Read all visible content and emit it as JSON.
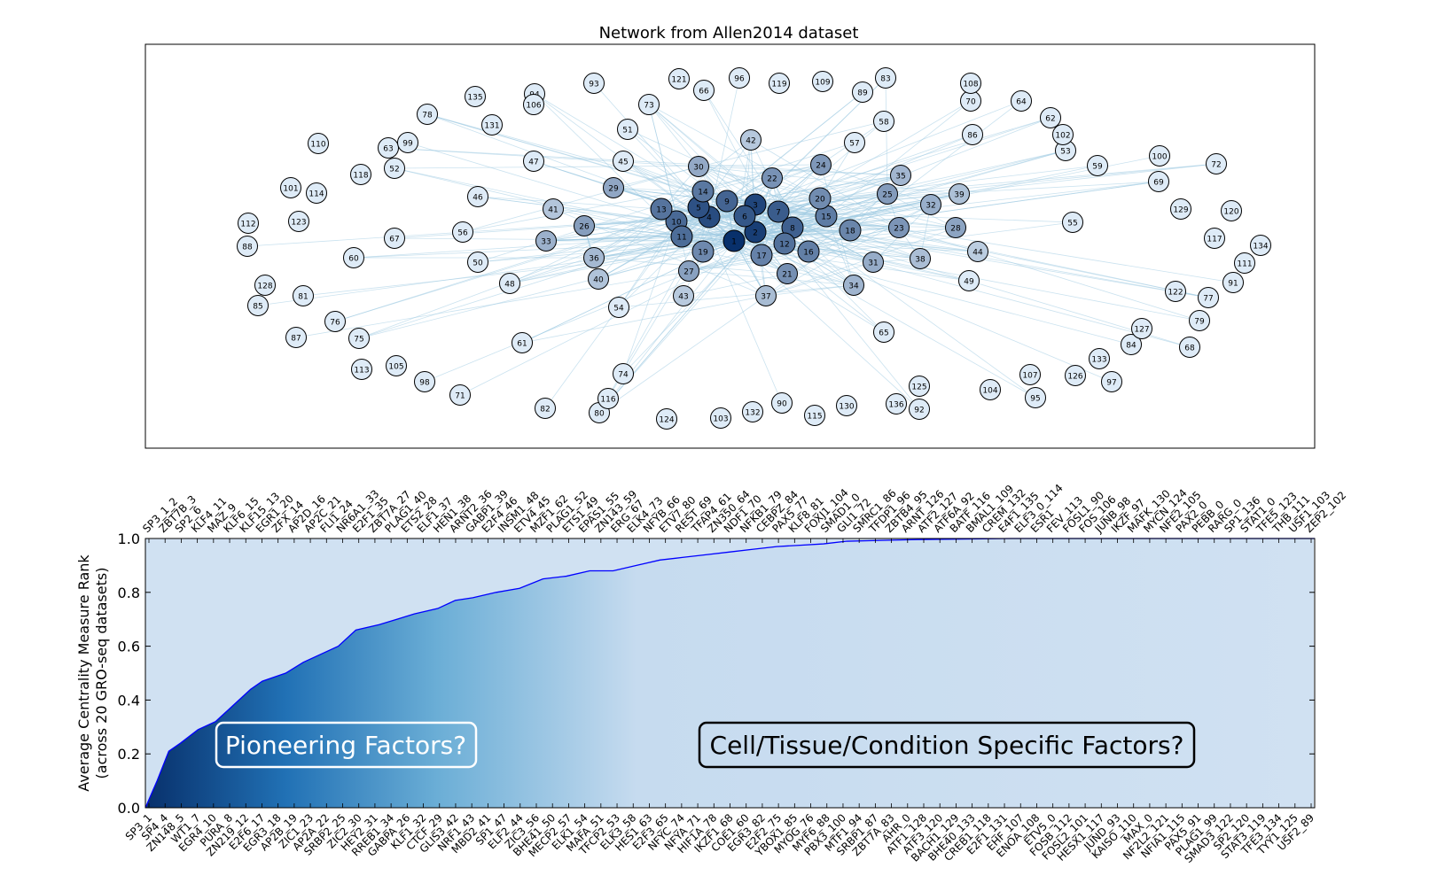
{
  "chart_data": [
    {
      "type": "network",
      "title": "Network from Allen2014 dataset",
      "node_labels": [
        "1",
        "2",
        "3",
        "4",
        "5",
        "6",
        "7",
        "8",
        "9",
        "10",
        "11",
        "12",
        "13",
        "14",
        "15",
        "16",
        "17",
        "18",
        "19",
        "20",
        "21",
        "22",
        "23",
        "24",
        "25",
        "26",
        "27",
        "28",
        "29",
        "30",
        "31",
        "32",
        "33",
        "34",
        "35",
        "36",
        "37",
        "38",
        "39",
        "40",
        "41",
        "42",
        "43",
        "44",
        "45",
        "46",
        "47",
        "48",
        "49",
        "50",
        "51",
        "52",
        "53",
        "54",
        "55",
        "56",
        "57",
        "58",
        "59",
        "60",
        "61",
        "62",
        "63",
        "64",
        "65",
        "66",
        "67",
        "68",
        "69",
        "70",
        "71",
        "72",
        "73",
        "74",
        "75",
        "76",
        "77",
        "78",
        "79",
        "80",
        "81",
        "82",
        "83",
        "84",
        "85",
        "86",
        "87",
        "88",
        "89",
        "90",
        "91",
        "92",
        "93",
        "94",
        "95",
        "96",
        "97",
        "98",
        "99",
        "100",
        "101",
        "102",
        "103",
        "104",
        "105",
        "106",
        "107",
        "108",
        "109",
        "110",
        "111",
        "112",
        "113",
        "114",
        "115",
        "116",
        "117",
        "118",
        "119",
        "120",
        "121",
        "122",
        "123",
        "124",
        "125",
        "126",
        "127",
        "128",
        "129",
        "130",
        "131",
        "132",
        "133",
        "134",
        "135",
        "136"
      ],
      "node_color_scale": [
        "#08306b",
        "#deebf7"
      ],
      "edge_color": "#9ecae1"
    },
    {
      "type": "area",
      "ylabel": "Average Centrality Measure Rank\n(across 20 GRO-seq datasets)",
      "ylim": [
        0,
        1
      ],
      "yticks": [
        "0.0",
        "0.2",
        "0.4",
        "0.6",
        "0.8",
        "1.0"
      ],
      "line_color": "#0000ff",
      "fill_color_scale": [
        "#08306b",
        "#2171b5",
        "#6baed6",
        "#c6dbef",
        "#d0e1f2"
      ],
      "x_bottom_labels": [
        "SP3_1",
        "SP4_4",
        "ZN148_5",
        "WT1_7",
        "EGR4_10",
        "PURA_8",
        "ZN219_12",
        "E2F6_17",
        "EGR3_18",
        "AP2B_19",
        "ZIC1_23",
        "AP2A_22",
        "SRBP2_25",
        "ZIC2_30",
        "HEY2_31",
        "RREB1_34",
        "GABPA_26",
        "KLF1_32",
        "CTCF_29",
        "GLIS3_42",
        "NRF1_43",
        "MBD2_41",
        "SP1_47",
        "ELF2_44",
        "ZIC3_56",
        "BHE41_50",
        "MECP2_57",
        "ELK1_54",
        "MAFA_51",
        "TFCP2_53",
        "ELK3_58",
        "HES1_63",
        "E2F3_65",
        "NFYC_74",
        "NFYA_71",
        "HIF1A_78",
        "IKZF1_68",
        "COE1_60",
        "EGR3_82",
        "E2F2_75",
        "YBOX1_85",
        "MYOG_76",
        "MYF6_88",
        "PBX3_100",
        "MTF1_94",
        "SRBP1_87",
        "ZBT7A_83",
        "AHR_0",
        "ATF1_128",
        "ATF3_120",
        "BACH1_129",
        "BHE40_133",
        "CREB1_118",
        "E2F1_131",
        "EHF_107",
        "ENOA_108",
        "ETV5_0",
        "FOSB_112",
        "FOSL2_101",
        "HESX1_117",
        "JUND_93",
        "KAISO_110",
        "MAX_0",
        "NF2L2_121",
        "NFIA1_115",
        "PAX5_91",
        "PLAG1_99",
        "SMAD3_122",
        "SP2_120",
        "STAT3_119",
        "TFE3_134",
        "TYY1_125",
        "USF2_89"
      ],
      "x_top_labels": [
        "SP3_1_2",
        "ZBT7B_3",
        "SP2_6",
        "KLF4_11",
        "MAZ_9",
        "KLF6_15",
        "KLF15_13",
        "EGR1_20",
        "ZFX_14",
        "AP2D_16",
        "AP2C_21",
        "FLI1_24",
        "NR6A1_33",
        "E2F1_35",
        "ZBT7A_27",
        "PLAG1_40",
        "ETS2_28",
        "ELF1_37",
        "HEN1_38",
        "ARNT2_36",
        "GABP1_39",
        "E2F4_46",
        "INSM1_48",
        "ETV4_45",
        "MZF1_62",
        "PLAG1_52",
        "ETS1_49",
        "EPAS1_55",
        "ZN143_59",
        "ERG_67",
        "ELK4_73",
        "NFYB_66",
        "ETV7_80",
        "REST_69",
        "TFAP4_61",
        "ZN350_64",
        "NDF1_70",
        "NFKB1_79",
        "CEBPZ_84",
        "PAX5_77",
        "KLF8_81",
        "FOXJ1_104",
        "SMAD1_0",
        "GLI1_72",
        "SMRC1_86",
        "TFDP1_96",
        "ZBTB4_95",
        "ARNT_126",
        "ATF2_127",
        "ATF6A_92",
        "BATF_116",
        "BMAL1_109",
        "CREM_132",
        "E4F1_135",
        "ELF3_0_114",
        "ESR1",
        "FEV_113",
        "FOSL1_90",
        "FOS_106",
        "JUNB_98",
        "IKZF_97",
        "MAFK_130",
        "MYCN_124",
        "NFE2_105",
        "PAX2_0",
        "PEBB_0",
        "RARG_0",
        "SP1_136",
        "STAT1_0",
        "TFE5_123",
        "THB_111",
        "USF1_103",
        "ZEP2_102"
      ],
      "x": [
        0,
        0.01,
        0.02,
        0.03,
        0.045,
        0.06,
        0.075,
        0.09,
        0.1,
        0.12,
        0.135,
        0.15,
        0.165,
        0.18,
        0.2,
        0.215,
        0.23,
        0.25,
        0.265,
        0.28,
        0.3,
        0.32,
        0.34,
        0.36,
        0.38,
        0.4,
        0.42,
        0.44,
        0.46,
        0.48,
        0.5,
        0.52,
        0.54,
        0.56,
        0.58,
        0.6,
        0.63,
        0.66,
        0.7,
        0.74,
        0.78,
        1.0
      ],
      "y": [
        0,
        0.1,
        0.21,
        0.24,
        0.29,
        0.32,
        0.38,
        0.44,
        0.47,
        0.5,
        0.54,
        0.57,
        0.6,
        0.66,
        0.68,
        0.7,
        0.72,
        0.74,
        0.77,
        0.78,
        0.8,
        0.815,
        0.85,
        0.86,
        0.88,
        0.88,
        0.9,
        0.92,
        0.93,
        0.94,
        0.95,
        0.96,
        0.97,
        0.975,
        0.98,
        0.99,
        0.993,
        0.996,
        0.998,
        1.0,
        1.0,
        1.0
      ],
      "annotations": [
        {
          "text": "Pioneering Factors?",
          "x": 0.17,
          "y": 0.22
        },
        {
          "text": "Cell/Tissue/Condition Specific Factors?",
          "x": 0.68,
          "y": 0.22
        }
      ]
    }
  ]
}
